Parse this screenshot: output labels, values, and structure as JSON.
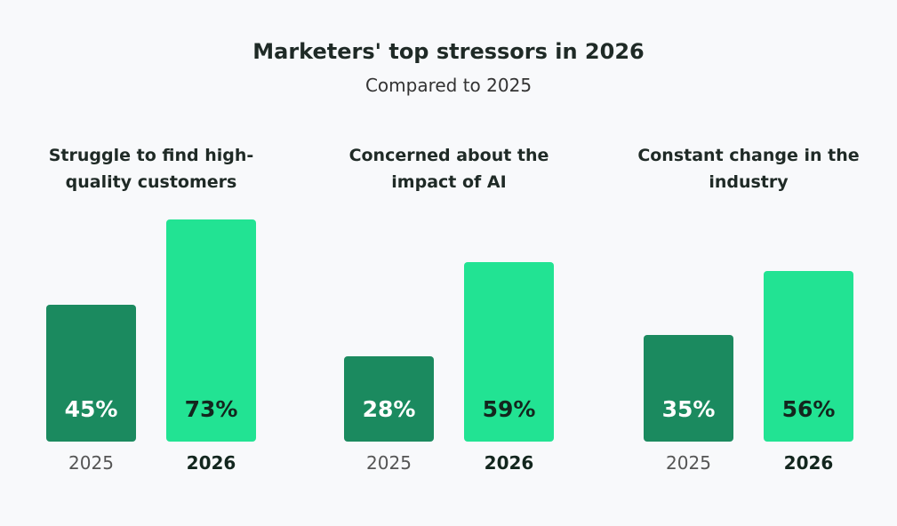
{
  "chart_data": {
    "type": "bar",
    "title": "Marketers' top stressors in 2026",
    "subtitle": "Compared to 2025",
    "categories": [
      "Struggle to find high-quality customers",
      "Concerned about the impact of AI",
      "Constant change in the industry"
    ],
    "series": [
      {
        "name": "2025",
        "values": [
          45,
          28,
          35
        ],
        "labels": [
          "45%",
          "28%",
          "35%"
        ],
        "color": "#1b8a5f"
      },
      {
        "name": "2026",
        "values": [
          73,
          59,
          56
        ],
        "labels": [
          "73%",
          "59%",
          "56%"
        ],
        "color": "#22e393"
      }
    ],
    "ylim": [
      0,
      100
    ],
    "unit": "%"
  }
}
